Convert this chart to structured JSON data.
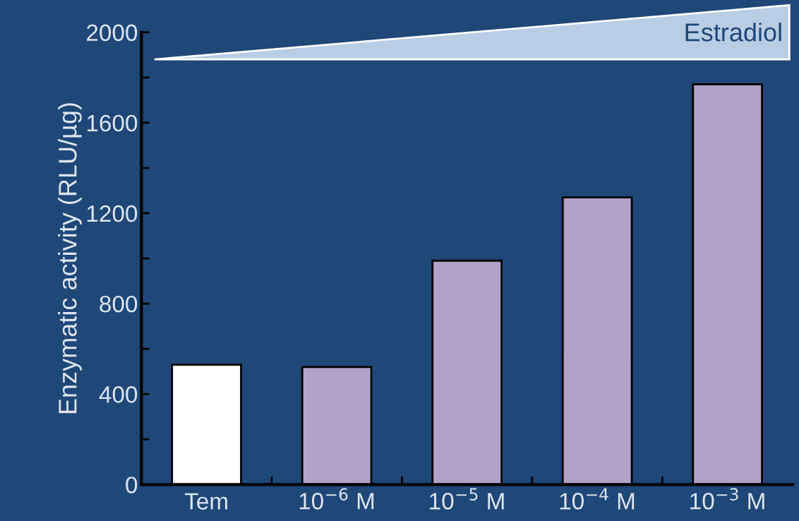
{
  "chart_data": {
    "type": "bar",
    "ylabel": "Enzymatic activity (RLU/µg)",
    "categories": [
      "Tem",
      "10$^{−6}$ M",
      "10$^{−5}$ M",
      "10$^{−4}$ M",
      "10$^{−3}$ M"
    ],
    "values": [
      530,
      520,
      990,
      1270,
      1770
    ],
    "colors": [
      "#ffffff",
      "#b3a2c7",
      "#b3a2c7",
      "#b3a2c7",
      "#b3a2c7"
    ],
    "ylim": [
      0,
      2000
    ],
    "yticks": [
      0,
      {
        "value": 200,
        "label": null
      },
      400,
      {
        "value": 600,
        "label": null
      },
      800,
      {
        "value": 1000,
        "label": null
      },
      1200,
      {
        "value": 1400,
        "label": null
      },
      1600,
      {
        "value": 1800,
        "label": null
      },
      2000
    ],
    "annotations": [
      "Estradiol"
    ],
    "grid": false
  }
}
